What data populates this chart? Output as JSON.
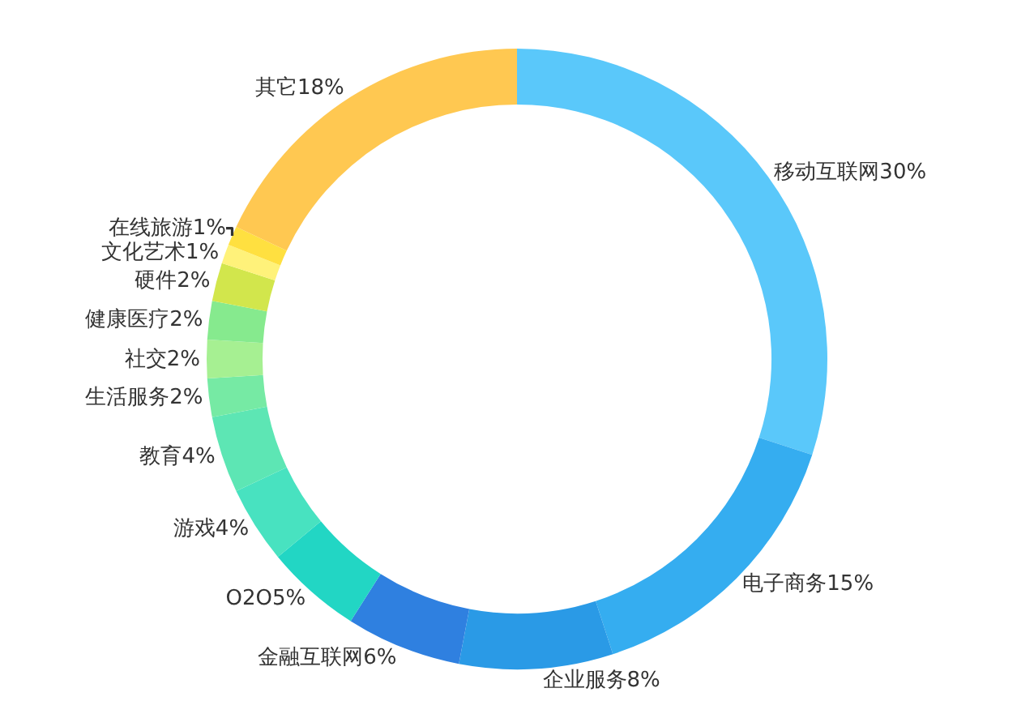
{
  "chart_data": {
    "type": "donut",
    "categories": [
      "移动互联网",
      "电子商务",
      "企业服务",
      "金融互联网",
      "O2O",
      "游戏",
      "教育",
      "生活服务",
      "社交",
      "健康医疗",
      "硬件",
      "文化艺术",
      "在线旅游",
      "其它"
    ],
    "values": [
      30,
      15,
      8,
      6,
      5,
      4,
      4,
      2,
      2,
      2,
      2,
      1,
      1,
      18
    ],
    "value_labels": [
      "30%",
      "15%",
      "8%",
      "6%",
      "5%",
      "4%",
      "4%",
      "2%",
      "2%",
      "2%",
      "2%",
      "1%",
      "1%",
      "18%"
    ],
    "colors": [
      "#5ac8fa",
      "#35adf0",
      "#2a9ae6",
      "#2f80e0",
      "#22d6c4",
      "#48e2c0",
      "#5de6b4",
      "#76eaa4",
      "#a6f092",
      "#86ea8e",
      "#d2e64c",
      "#fff27a",
      "#ffe040",
      "#ffc851"
    ],
    "legend": false
  }
}
